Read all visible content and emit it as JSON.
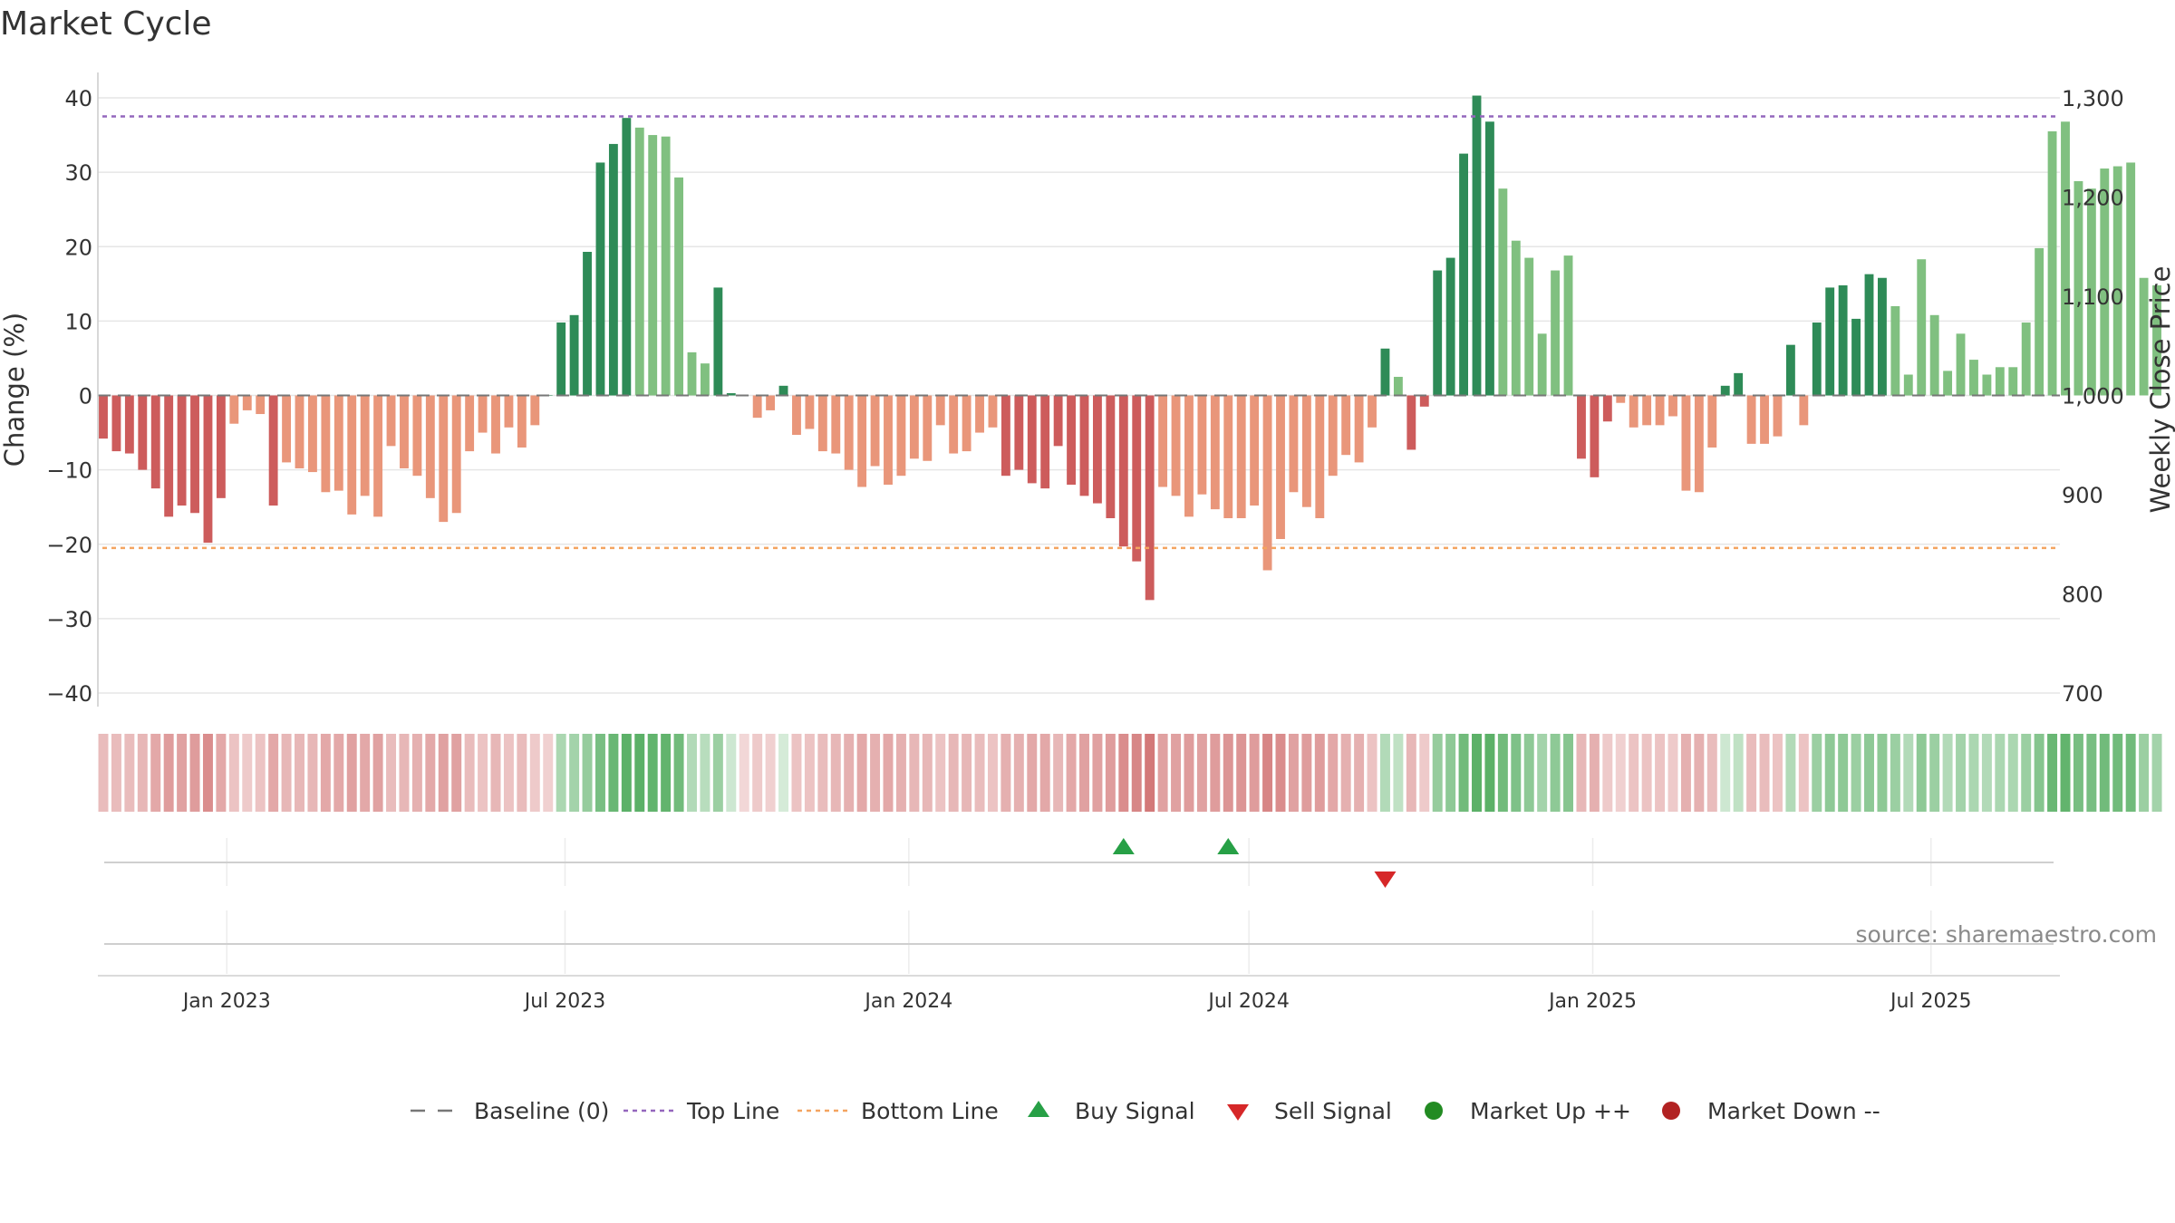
{
  "chart_data": {
    "type": "bar",
    "title": "Market Cycle",
    "ylabel": "Change (%)",
    "y2label": "Weekly Close Price",
    "ylim": [
      -43,
      43
    ],
    "y2lim": [
      640,
      1320
    ],
    "yticks": [
      40,
      30,
      20,
      10,
      0,
      -10,
      -20,
      -30,
      -40
    ],
    "yticks_labels": [
      "40",
      "30",
      "20",
      "10",
      "0",
      "−10",
      "−20",
      "−30",
      "−40"
    ],
    "y2ticks": [
      1300,
      1200,
      1100,
      1000,
      900,
      800,
      700
    ],
    "y2ticks_labels": [
      "1,300",
      "1,200",
      "1,100",
      "1,000",
      "900",
      "800",
      "700"
    ],
    "x_start": "2022-10-24",
    "x_end": "2025-09-08",
    "xticks": [
      {
        "date": "2023-01-01",
        "label": "Jan 2023"
      },
      {
        "date": "2023-07-01",
        "label": "Jul 2023"
      },
      {
        "date": "2024-01-01",
        "label": "Jan 2024"
      },
      {
        "date": "2024-07-01",
        "label": "Jul 2024"
      },
      {
        "date": "2025-01-01",
        "label": "Jan 2025"
      },
      {
        "date": "2025-07-01",
        "label": "Jul 2025"
      }
    ],
    "top_line": 37.5,
    "bottom_line": -20.5,
    "values": [
      -5.8,
      -7.5,
      -7.8,
      -10.0,
      -12.5,
      -16.3,
      -14.8,
      -15.8,
      -19.8,
      -13.8,
      -3.8,
      -2.0,
      -2.5,
      -14.8,
      -9.0,
      -9.8,
      -10.3,
      -13.0,
      -12.8,
      -16.0,
      -13.5,
      -16.3,
      -6.8,
      -9.8,
      -10.8,
      -13.8,
      -17.0,
      -15.8,
      -7.5,
      -5.0,
      -7.8,
      -4.3,
      -7.0,
      -4.0,
      0.0,
      9.8,
      10.8,
      19.3,
      31.3,
      33.8,
      37.3,
      36.0,
      35.0,
      34.8,
      29.3,
      5.8,
      4.3,
      14.5,
      0.3,
      0.0,
      -3.0,
      -2.0,
      1.3,
      -5.3,
      -4.5,
      -7.5,
      -7.8,
      -10.0,
      -12.3,
      -9.5,
      -12.0,
      -10.8,
      -8.5,
      -8.8,
      -4.0,
      -7.8,
      -7.5,
      -5.0,
      -4.3,
      -10.8,
      -10.0,
      -11.8,
      -12.5,
      -6.8,
      -12.0,
      -13.5,
      -14.5,
      -16.5,
      -20.3,
      -22.3,
      -27.5,
      -12.3,
      -13.5,
      -16.3,
      -13.3,
      -15.3,
      -16.5,
      -16.5,
      -14.8,
      -23.5,
      -19.3,
      -13.0,
      -15.0,
      -16.5,
      -10.8,
      -8.0,
      -9.0,
      -4.3,
      6.3,
      2.5,
      -7.3,
      -1.5,
      16.8,
      18.5,
      32.5,
      40.3,
      36.8,
      27.8,
      20.8,
      18.5,
      8.3,
      16.8,
      18.8,
      -8.5,
      -11.0,
      -3.5,
      -1.0,
      -4.3,
      -4.0,
      -4.0,
      -2.8,
      -12.8,
      -13.0,
      -7.0,
      1.3,
      3.0,
      -6.5,
      -6.5,
      -5.5,
      6.8,
      -4.0,
      9.8,
      14.5,
      14.8,
      10.3,
      16.3,
      15.8,
      12.0,
      2.8,
      18.3,
      10.8,
      3.3,
      8.3,
      4.8,
      2.8,
      3.8,
      3.8,
      9.8,
      19.8,
      35.5,
      36.8,
      28.8,
      27.8,
      30.5,
      30.8,
      31.3,
      15.8,
      14.8
    ],
    "bar_colors": {
      "strong_up": "#2e8b57",
      "up": "#80c080",
      "down": "#cd5c5c",
      "weak_down": "#e9967a"
    },
    "weak_down_weeks": [
      10,
      11,
      12,
      14,
      15,
      16,
      17,
      18,
      19,
      20,
      21,
      22,
      23,
      24,
      25,
      26,
      27,
      28,
      29,
      30,
      31,
      32,
      33,
      34,
      50,
      51,
      53,
      54,
      55,
      56,
      57,
      58,
      59,
      60,
      61,
      62,
      63,
      64,
      65,
      66,
      67,
      68,
      81,
      82,
      83,
      84,
      85,
      86,
      87,
      88,
      89,
      90,
      91,
      92,
      93,
      94,
      95,
      96,
      97,
      116,
      117,
      118,
      119,
      120,
      121,
      122,
      123,
      124,
      125,
      126,
      127,
      128,
      129,
      130,
      131,
      132
    ],
    "light_up_weeks": [
      41,
      42,
      43,
      44,
      45,
      46,
      99,
      107,
      108,
      109,
      110,
      111,
      112,
      113,
      137,
      138,
      139,
      140,
      141,
      142,
      143,
      144,
      145,
      146,
      147,
      148,
      149,
      150,
      151,
      152,
      153,
      154,
      155,
      156,
      157,
      158,
      159,
      160,
      161
    ],
    "heat_strip_levels": [
      -0.25,
      -0.25,
      -0.25,
      -0.3,
      -0.4,
      -0.5,
      -0.45,
      -0.5,
      -0.6,
      -0.4,
      -0.2,
      -0.15,
      -0.2,
      -0.4,
      -0.3,
      -0.3,
      -0.3,
      -0.4,
      -0.4,
      -0.45,
      -0.4,
      -0.45,
      -0.25,
      -0.3,
      -0.35,
      -0.4,
      -0.45,
      -0.45,
      -0.25,
      -0.2,
      -0.3,
      -0.2,
      -0.25,
      -0.15,
      -0.1,
      0.35,
      0.4,
      0.5,
      0.7,
      0.8,
      0.9,
      0.9,
      0.85,
      0.85,
      0.75,
      0.3,
      0.25,
      0.45,
      0.1,
      -0.05,
      -0.15,
      -0.1,
      0.05,
      -0.2,
      -0.2,
      -0.25,
      -0.3,
      -0.35,
      -0.4,
      -0.35,
      -0.4,
      -0.35,
      -0.3,
      -0.3,
      -0.2,
      -0.3,
      -0.3,
      -0.25,
      -0.2,
      -0.35,
      -0.35,
      -0.4,
      -0.4,
      -0.3,
      -0.4,
      -0.45,
      -0.45,
      -0.5,
      -0.6,
      -0.65,
      -0.75,
      -0.45,
      -0.45,
      -0.5,
      -0.45,
      -0.5,
      -0.55,
      -0.55,
      -0.5,
      -0.65,
      -0.6,
      -0.45,
      -0.5,
      -0.5,
      -0.4,
      -0.35,
      -0.35,
      -0.2,
      0.3,
      0.2,
      -0.3,
      -0.15,
      0.5,
      0.55,
      0.75,
      0.9,
      0.9,
      0.75,
      0.65,
      0.55,
      0.4,
      0.55,
      0.6,
      -0.3,
      -0.35,
      -0.15,
      -0.1,
      -0.2,
      -0.2,
      -0.2,
      -0.15,
      -0.35,
      -0.35,
      -0.25,
      0.1,
      0.2,
      -0.25,
      -0.25,
      -0.2,
      0.3,
      -0.2,
      0.45,
      0.55,
      0.55,
      0.45,
      0.55,
      0.55,
      0.45,
      0.3,
      0.55,
      0.45,
      0.3,
      0.4,
      0.35,
      0.3,
      0.35,
      0.35,
      0.45,
      0.6,
      0.8,
      0.85,
      0.7,
      0.7,
      0.75,
      0.75,
      0.75,
      0.45,
      0.4
    ],
    "heat_colors": {
      "up": "#3fa34d",
      "down": "#c44a4a"
    },
    "buy_signals": [
      "2024-04-22",
      "2024-06-17"
    ],
    "sell_signals": [
      "2024-09-09"
    ],
    "signal_colors": {
      "buy": "#27a046",
      "sell": "#d62728",
      "market_up": "#228b22",
      "market_down": "#b22222"
    },
    "line_colors": {
      "baseline": "#777777",
      "top": "#9467bd",
      "bottom": "#f4a460"
    },
    "legend": {
      "placement": "bottom",
      "entries": [
        {
          "key": "baseline",
          "label": "Baseline (0)"
        },
        {
          "key": "top",
          "label": "Top Line"
        },
        {
          "key": "bottom",
          "label": "Bottom Line"
        },
        {
          "key": "buy",
          "label": "Buy Signal"
        },
        {
          "key": "sell",
          "label": "Sell Signal"
        },
        {
          "key": "market_up",
          "label": "Market Up ++"
        },
        {
          "key": "market_down",
          "label": "Market Down --"
        }
      ]
    },
    "source": "source: sharemaestro.com",
    "grid": true
  }
}
